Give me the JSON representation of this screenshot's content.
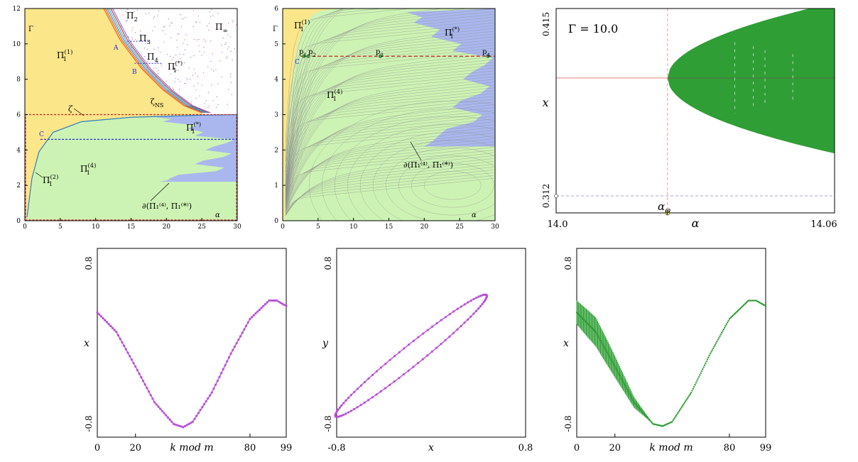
{
  "panels": [
    {
      "id": "a",
      "x_ticks": [
        "0",
        "5",
        "10",
        "15",
        "20",
        "25",
        "30"
      ],
      "y_ticks": [
        "0",
        "2",
        "4",
        "6",
        "8",
        "10",
        "12"
      ],
      "xlabel": "α",
      "ylabel": "Γ",
      "labels": {
        "p2": "Π",
        "p2_sub": "2",
        "p3": "Π",
        "p3_sub": "3",
        "p4": "Π",
        "p4_sub": "4",
        "pinf": "Π",
        "pinf_sub": "∞",
        "p1_1": "Π",
        "p1_1_sub": "1",
        "p1_1_sup": "(1)",
        "p1_star_top": "Π",
        "p1_star_top_sub": "1",
        "p1_star_top_sup": "(*)",
        "p1_star": "Π",
        "p1_star_sub": "1",
        "p1_star_sup": "(*)",
        "p1_4": "Π",
        "p1_4_sub": "1",
        "p1_4_sup": "(4)",
        "p1_2": "Π",
        "p1_2_sub": "1",
        "p1_2_sup": "(2)",
        "zeta": "ζ",
        "zeta_ns": "ζ",
        "zeta_ns_sub": "NS",
        "A": "A",
        "B": "B",
        "C": "C",
        "boundary": "∂(Π₁⁽⁴⁾, Π₁⁽*⁾)"
      },
      "colors": {
        "yellow": "#fbe68a",
        "green": "#cdf3b4",
        "blue": "#a9b7ee"
      }
    },
    {
      "id": "b",
      "x_ticks": [
        "0",
        "5",
        "10",
        "15",
        "20",
        "25",
        "30"
      ],
      "y_ticks": [
        "0",
        "1",
        "2",
        "3",
        "4",
        "5",
        "6"
      ],
      "xlabel": "α",
      "ylabel": "Γ",
      "labels": {
        "p1_1": "Π",
        "p1_1_sub": "1",
        "p1_1_sup": "(1)",
        "p1_star": "Π",
        "p1_star_sub": "1",
        "p1_star_sup": "(*)",
        "p1_4": "Π",
        "p1_4_sub": "1",
        "p1_4_sup": "(4)",
        "C": "C",
        "pt1": "p",
        "pt1_sub": "1",
        "pt2": "p",
        "pt2_sub": "2",
        "pt3": "p",
        "pt3_sub": "3",
        "pt4": "p",
        "pt4_sub": "4",
        "boundary": "∂(Π₁⁽⁴⁾, Π₁⁽*⁾)"
      }
    },
    {
      "id": "c",
      "annotation": "Γ = 10.0",
      "x_ticks": [
        "14.0",
        "14.06"
      ],
      "y_ticks": [
        "0.312",
        "0.415"
      ],
      "xlabel": "α",
      "ylabel": "x",
      "alpha_label": "α",
      "alpha_sub": "φ",
      "colors": {
        "band": "#2e9e35",
        "line": "#e0867a"
      }
    },
    {
      "id": "d",
      "x_ticks": [
        "0",
        "20",
        "80",
        "99"
      ],
      "y_ticks": [
        "0.8",
        "-0.8"
      ],
      "xlabel": "k mod m",
      "ylabel": "x",
      "color": "#b94fd6"
    },
    {
      "id": "e",
      "x_ticks": [
        "-0.8",
        "0.8"
      ],
      "y_ticks": [
        "0.8",
        "-0.8"
      ],
      "xlabel": "x",
      "ylabel": "y",
      "color": "#b94fd6"
    },
    {
      "id": "f",
      "x_ticks": [
        "0",
        "20",
        "80",
        "99"
      ],
      "y_ticks": [
        "0.8",
        "-0.8"
      ],
      "xlabel": "k mod m",
      "ylabel": "x",
      "color": "#2e9e35"
    }
  ],
  "chart_data": [
    {
      "type": "area",
      "panel": "a",
      "xlim": [
        0,
        30
      ],
      "ylim": [
        0,
        12
      ],
      "regions": [
        "Π1(1)",
        "Π1(*)",
        "Π1(4)",
        "Π1(2)",
        "Π2",
        "Π3",
        "Π4",
        "Π∞"
      ],
      "rect_gamma_max": 6,
      "c_line_gamma": 4.6,
      "zeta_curve": {
        "x": [
          0.3,
          1,
          2,
          4,
          8,
          15,
          25,
          30
        ],
        "y": [
          0.2,
          2.4,
          3.9,
          5.0,
          5.6,
          5.85,
          5.97,
          6.0
        ]
      },
      "zeta_ns_curve": {
        "x": [
          11.5,
          14,
          17,
          20,
          23,
          25.5
        ],
        "y": [
          12,
          10.1,
          8.5,
          7.3,
          6.4,
          6.0
        ]
      },
      "blue_front": {
        "y": [
          2.2,
          2.4,
          2.8,
          3.2,
          3.6,
          4.0,
          4.4,
          4.8,
          5.2,
          5.6,
          5.9
        ],
        "x": [
          19,
          20.5,
          27,
          24,
          28,
          25.5,
          28.5,
          24,
          23,
          19.5,
          17.5
        ]
      }
    },
    {
      "type": "area",
      "panel": "b",
      "xlim": [
        0,
        30
      ],
      "ylim": [
        0,
        6
      ],
      "c_line_gamma": 4.65,
      "points": [
        {
          "name": "p1",
          "x": 3.0,
          "y": 4.65
        },
        {
          "name": "p2",
          "x": 3.6,
          "y": 4.65
        },
        {
          "name": "p3",
          "x": 13.8,
          "y": 4.65
        },
        {
          "name": "p4",
          "x": 29.0,
          "y": 4.65
        }
      ],
      "blue_front": {
        "y": [
          2.1,
          2.4,
          2.8,
          3.2,
          3.6,
          4.0,
          4.4,
          4.8,
          5.2,
          5.6,
          5.9
        ],
        "x": [
          20,
          22,
          27,
          24,
          28,
          25.5,
          28.5,
          24,
          21,
          18.5,
          17.5
        ]
      }
    },
    {
      "type": "scatter",
      "panel": "c",
      "xlim": [
        14.0,
        14.06
      ],
      "ylim": [
        0.312,
        0.415
      ],
      "alpha_phi": 14.024,
      "fixed_point_x": 0.38,
      "band_upper": {
        "a": [
          14.024,
          14.03,
          14.04,
          14.05,
          14.06
        ],
        "x": [
          0.38,
          0.391,
          0.399,
          0.405,
          0.41
        ]
      },
      "band_lower": {
        "a": [
          14.024,
          14.03,
          14.04,
          14.05,
          14.06
        ],
        "x": [
          0.38,
          0.369,
          0.361,
          0.355,
          0.35
        ]
      }
    },
    {
      "type": "scatter",
      "panel": "d",
      "xlim": [
        0,
        99
      ],
      "ylim": [
        -0.8,
        0.8
      ],
      "series": [
        {
          "x": [
            0,
            10,
            20,
            30,
            40,
            45,
            50,
            60,
            70,
            80,
            90,
            94,
            99
          ],
          "values": [
            0.28,
            0.1,
            -0.22,
            -0.55,
            -0.75,
            -0.78,
            -0.73,
            -0.46,
            -0.1,
            0.22,
            0.39,
            0.39,
            0.34
          ]
        }
      ]
    },
    {
      "type": "scatter",
      "panel": "e",
      "xlim": [
        -0.8,
        0.8
      ],
      "ylim": [
        -0.8,
        0.8
      ],
      "series": [
        {
          "x": [
            -0.78,
            -0.6,
            -0.4,
            -0.2,
            0.0,
            0.2,
            0.38,
            0.45,
            0.4,
            0.2,
            0.0,
            -0.2,
            -0.4,
            -0.6,
            -0.77
          ],
          "values": [
            -0.75,
            -0.55,
            -0.32,
            -0.08,
            0.13,
            0.3,
            0.42,
            0.47,
            0.38,
            0.2,
            -0.02,
            -0.27,
            -0.5,
            -0.68,
            -0.72
          ]
        }
      ]
    },
    {
      "type": "scatter",
      "panel": "f",
      "xlim": [
        0,
        99
      ],
      "ylim": [
        -0.8,
        0.8
      ],
      "series": [
        {
          "x": [
            0,
            10,
            20,
            30,
            40,
            45,
            50,
            60,
            70,
            80,
            90,
            94,
            99
          ],
          "values": [
            0.28,
            0.1,
            -0.22,
            -0.55,
            -0.75,
            -0.77,
            -0.73,
            -0.46,
            -0.1,
            0.22,
            0.39,
            0.39,
            0.34
          ]
        }
      ],
      "oscillation_band": {
        "x": [
          0,
          5,
          10,
          15,
          20,
          25,
          30,
          35,
          40
        ],
        "amplitude": [
          0.22,
          0.25,
          0.27,
          0.24,
          0.2,
          0.15,
          0.1,
          0.05,
          0
        ]
      }
    }
  ]
}
